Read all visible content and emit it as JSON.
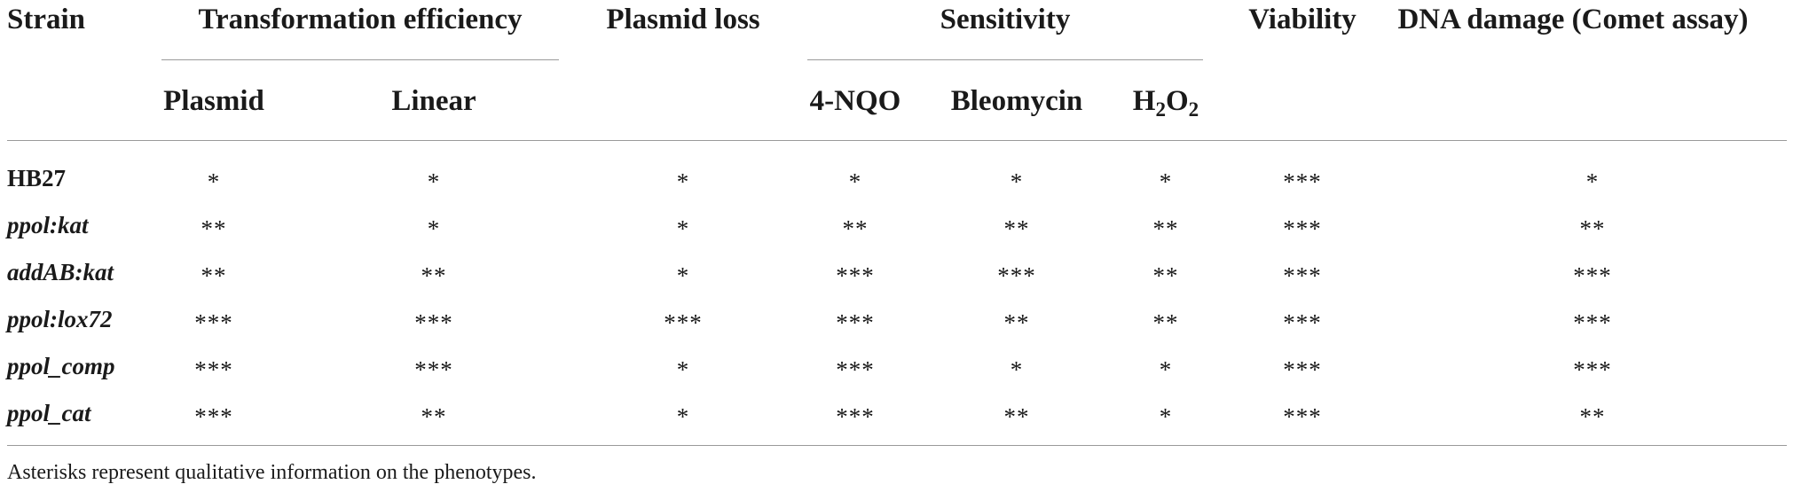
{
  "headers": {
    "strain": "Strain",
    "transformation_efficiency": "Transformation efficiency",
    "plasmid_loss": "Plasmid loss",
    "sensitivity": "Sensitivity",
    "viability": "Viability",
    "dna_damage": "DNA damage (Comet assay)",
    "plasmid": "Plasmid",
    "linear": "Linear",
    "nqo": "4-NQO",
    "bleomycin": "Bleomycin",
    "h2o2_main": "H",
    "h2o2_sub1": "2",
    "h2o2_mid": "O",
    "h2o2_sub2": "2"
  },
  "rows": [
    {
      "strain": "HB27",
      "italic": false,
      "plasmid": "*",
      "linear": "*",
      "plasmid_loss": "*",
      "nqo": "*",
      "bleomycin": "*",
      "h2o2": "*",
      "viability": "***",
      "dna_damage": "*"
    },
    {
      "strain": "ppol:kat",
      "italic": true,
      "plasmid": "**",
      "linear": "*",
      "plasmid_loss": "*",
      "nqo": "**",
      "bleomycin": "**",
      "h2o2": "**",
      "viability": "***",
      "dna_damage": "**"
    },
    {
      "strain": "addAB:kat",
      "italic": true,
      "plasmid": "**",
      "linear": "**",
      "plasmid_loss": "*",
      "nqo": "***",
      "bleomycin": "***",
      "h2o2": "**",
      "viability": "***",
      "dna_damage": "***"
    },
    {
      "strain": "ppol:lox72",
      "italic": true,
      "plasmid": "***",
      "linear": "***",
      "plasmid_loss": "***",
      "nqo": "***",
      "bleomycin": "**",
      "h2o2": "**",
      "viability": "***",
      "dna_damage": "***"
    },
    {
      "strain": "ppol_comp",
      "italic": true,
      "plasmid": "***",
      "linear": "***",
      "plasmid_loss": "*",
      "nqo": "***",
      "bleomycin": "*",
      "h2o2": "*",
      "viability": "***",
      "dna_damage": "***"
    },
    {
      "strain": "ppol_cat",
      "italic": true,
      "plasmid": "***",
      "linear": "**",
      "plasmid_loss": "*",
      "nqo": "***",
      "bleomycin": "**",
      "h2o2": "*",
      "viability": "***",
      "dna_damage": "**"
    }
  ],
  "footnote": "Asterisks represent qualitative information on the phenotypes."
}
